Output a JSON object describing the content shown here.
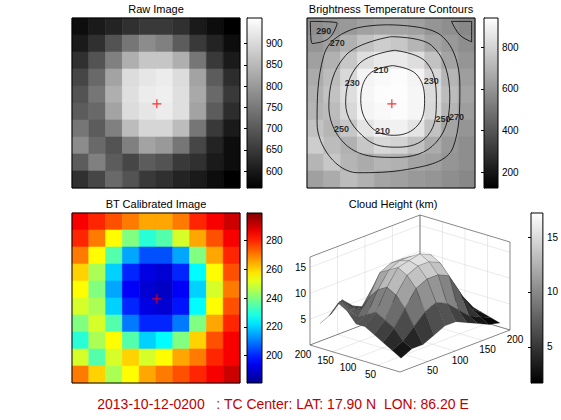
{
  "chart_data": [
    {
      "type": "heatmap",
      "title": "Raw Image",
      "color": "gray",
      "tick_labels": false,
      "cells": [
        [
          580,
          600,
          615,
          635,
          650,
          650,
          635,
          600,
          580,
          560
        ],
        [
          600,
          635,
          690,
          745,
          780,
          760,
          705,
          650,
          615,
          580
        ],
        [
          635,
          690,
          760,
          835,
          870,
          870,
          835,
          745,
          650,
          600
        ],
        [
          670,
          725,
          815,
          905,
          920,
          930,
          905,
          815,
          705,
          630
        ],
        [
          690,
          745,
          835,
          910,
          930,
          935,
          910,
          825,
          725,
          650
        ],
        [
          705,
          725,
          815,
          905,
          920,
          930,
          910,
          815,
          705,
          630
        ],
        [
          745,
          705,
          760,
          855,
          895,
          895,
          855,
          745,
          650,
          600
        ],
        [
          780,
          725,
          690,
          760,
          815,
          800,
          745,
          670,
          615,
          580
        ],
        [
          705,
          760,
          705,
          670,
          705,
          690,
          650,
          635,
          600,
          580
        ],
        [
          635,
          670,
          725,
          690,
          650,
          635,
          615,
          600,
          580,
          560
        ]
      ],
      "colorbar": {
        "range": [
          560,
          960
        ],
        "ticks": [
          600,
          650,
          700,
          750,
          800,
          850,
          900
        ]
      },
      "marker": "cross",
      "center": [
        5.05,
        5.05
      ]
    },
    {
      "type": "contour",
      "title": "Brightness Temperature Contours",
      "color": "gray",
      "tick_labels": false,
      "cells": [
        [
          580,
          600,
          615,
          635,
          650,
          650,
          635,
          600,
          580,
          560
        ],
        [
          600,
          635,
          690,
          745,
          780,
          760,
          705,
          650,
          615,
          580
        ],
        [
          635,
          690,
          760,
          835,
          870,
          870,
          835,
          745,
          650,
          600
        ],
        [
          670,
          725,
          815,
          905,
          920,
          930,
          905,
          815,
          705,
          630
        ],
        [
          690,
          745,
          835,
          910,
          930,
          935,
          910,
          825,
          725,
          650
        ],
        [
          705,
          725,
          815,
          905,
          920,
          930,
          910,
          815,
          705,
          630
        ],
        [
          745,
          705,
          760,
          855,
          895,
          895,
          855,
          745,
          650,
          600
        ],
        [
          780,
          725,
          690,
          760,
          815,
          800,
          745,
          670,
          615,
          580
        ],
        [
          705,
          760,
          705,
          670,
          705,
          690,
          650,
          635,
          600,
          580
        ],
        [
          635,
          670,
          725,
          690,
          650,
          635,
          615,
          600,
          580,
          560
        ]
      ],
      "colorbar": {
        "range": [
          125,
          940
        ],
        "ticks": [
          200,
          400,
          600,
          800
        ]
      },
      "contours": [
        {
          "level": 210,
          "rings": [
            [
              [
                5.1,
                2.8
              ],
              [
                6.5,
                3.3
              ],
              [
                7.0,
                4.8
              ],
              [
                6.6,
                6.3
              ],
              [
                5.2,
                6.9
              ],
              [
                3.8,
                6.4
              ],
              [
                3.2,
                4.8
              ],
              [
                3.7,
                3.3
              ]
            ]
          ],
          "labels_at": [
            [
              4.4,
              3.05
            ],
            [
              4.5,
              6.65
            ]
          ]
        },
        {
          "level": 230,
          "rings": [
            [
              [
                5.2,
                1.9
              ],
              [
                7.1,
                2.6
              ],
              [
                7.7,
                4.8
              ],
              [
                7.2,
                6.9
              ],
              [
                5.4,
                7.6
              ],
              [
                3.5,
                7.1
              ],
              [
                2.3,
                5.0
              ],
              [
                3.1,
                2.7
              ]
            ]
          ],
          "labels_at": [
            [
              2.7,
              3.85
            ],
            [
              7.4,
              3.7
            ]
          ]
        },
        {
          "level": 250,
          "rings": [
            [
              [
                5.0,
                1.1
              ],
              [
                7.4,
                1.6
              ],
              [
                8.5,
                4.6
              ],
              [
                7.7,
                7.3
              ],
              [
                5.3,
                8.2
              ],
              [
                2.8,
                7.8
              ],
              [
                1.3,
                5.2
              ],
              [
                2.3,
                2.2
              ]
            ]
          ],
          "labels_at": [
            [
              2.05,
              6.5
            ],
            [
              8.1,
              5.95
            ]
          ]
        },
        {
          "level": 270,
          "rings": [
            [
              [
                4.8,
                0.4
              ],
              [
                7.8,
                0.9
              ],
              [
                9.1,
                4.0
              ],
              [
                8.7,
                7.6
              ],
              [
                6.0,
                8.9
              ],
              [
                3.0,
                9.1
              ],
              [
                0.6,
                6.2
              ],
              [
                1.0,
                2.2
              ],
              [
                2.6,
                0.7
              ]
            ]
          ],
          "labels_at": [
            [
              1.8,
              1.45
            ],
            [
              8.9,
              5.8
            ]
          ]
        },
        {
          "level": 290,
          "rings": [
            [
              [
                0.2,
                0.2
              ],
              [
                1.8,
                0.3
              ],
              [
                1.3,
                1.2
              ],
              [
                0.3,
                1.5
              ]
            ],
            [
              [
                8.6,
                0.2
              ],
              [
                9.8,
                0.2
              ],
              [
                9.8,
                1.4
              ],
              [
                9.1,
                1.0
              ]
            ]
          ],
          "labels_at": [
            [
              1.0,
              0.75
            ]
          ]
        }
      ],
      "marker": "cross",
      "center": [
        5.05,
        5.05
      ]
    },
    {
      "type": "heatmap",
      "title": "BT Calibrated Image",
      "color": "jet",
      "tick_labels": false,
      "cells": [
        [
          285,
          280,
          275,
          270,
          265,
          265,
          270,
          280,
          285,
          290
        ],
        [
          280,
          270,
          255,
          240,
          230,
          235,
          250,
          265,
          275,
          285
        ],
        [
          270,
          255,
          235,
          215,
          205,
          205,
          215,
          240,
          265,
          280
        ],
        [
          260,
          245,
          220,
          200,
          192,
          190,
          200,
          225,
          255,
          275
        ],
        [
          255,
          240,
          215,
          195,
          190,
          188,
          195,
          220,
          250,
          270
        ],
        [
          250,
          245,
          220,
          200,
          192,
          190,
          198,
          225,
          255,
          275
        ],
        [
          240,
          250,
          235,
          210,
          200,
          200,
          210,
          240,
          265,
          280
        ],
        [
          230,
          245,
          255,
          235,
          220,
          225,
          240,
          260,
          275,
          285
        ],
        [
          250,
          235,
          250,
          260,
          250,
          255,
          265,
          270,
          280,
          285
        ],
        [
          270,
          260,
          245,
          255,
          265,
          270,
          275,
          280,
          285,
          290
        ]
      ],
      "colorbar": {
        "range": [
          181,
          299
        ],
        "ticks": [
          200,
          220,
          240,
          260,
          280
        ]
      },
      "marker": "cross",
      "center": [
        5.05,
        5.05
      ]
    },
    {
      "type": "surface",
      "title": "Cloud Height (km)",
      "color": "gray",
      "grid": true,
      "x": [
        10,
        30,
        50,
        70,
        90,
        110,
        130,
        150,
        170,
        190
      ],
      "y": [
        10,
        30,
        50,
        70,
        90,
        110,
        130,
        150,
        170,
        190
      ],
      "z": [
        [
          2,
          3,
          3,
          4,
          5,
          5,
          4,
          3,
          2,
          1.5
        ],
        [
          3,
          4,
          6,
          8,
          9,
          8,
          6,
          4,
          3,
          2
        ],
        [
          4,
          6,
          9,
          12,
          13,
          13,
          12,
          8,
          4,
          2.5
        ],
        [
          5,
          7,
          11,
          14,
          15,
          15,
          14,
          10,
          6,
          3
        ],
        [
          6,
          8,
          12,
          15,
          15.5,
          16,
          15,
          11,
          7,
          4
        ],
        [
          6,
          7,
          11,
          14,
          15,
          15,
          14,
          10,
          6,
          3
        ],
        [
          8,
          6,
          9,
          13,
          14,
          14,
          13,
          8,
          4,
          2.5
        ],
        [
          9,
          7,
          6,
          9,
          11,
          10,
          8,
          5,
          3,
          2
        ],
        [
          6,
          8,
          6,
          5,
          6,
          5,
          4,
          4,
          3,
          2
        ],
        [
          4,
          5,
          7,
          5,
          4,
          3,
          3,
          3,
          2,
          1.5
        ]
      ],
      "xlim": [
        0,
        200
      ],
      "ylim": [
        0,
        200
      ],
      "zlim": [
        0,
        17
      ],
      "xticks": [
        50,
        100,
        150,
        200
      ],
      "yticks": [
        50,
        100,
        150,
        200
      ],
      "zticks": [
        5,
        10,
        15
      ],
      "colorbar": {
        "range": [
          1.7,
          17.2
        ],
        "ticks": [
          5,
          10,
          15
        ]
      }
    }
  ],
  "caption": "2013-10-12-0200   : TC Center: LAT: 17.90 N  LON: 86.20 E"
}
